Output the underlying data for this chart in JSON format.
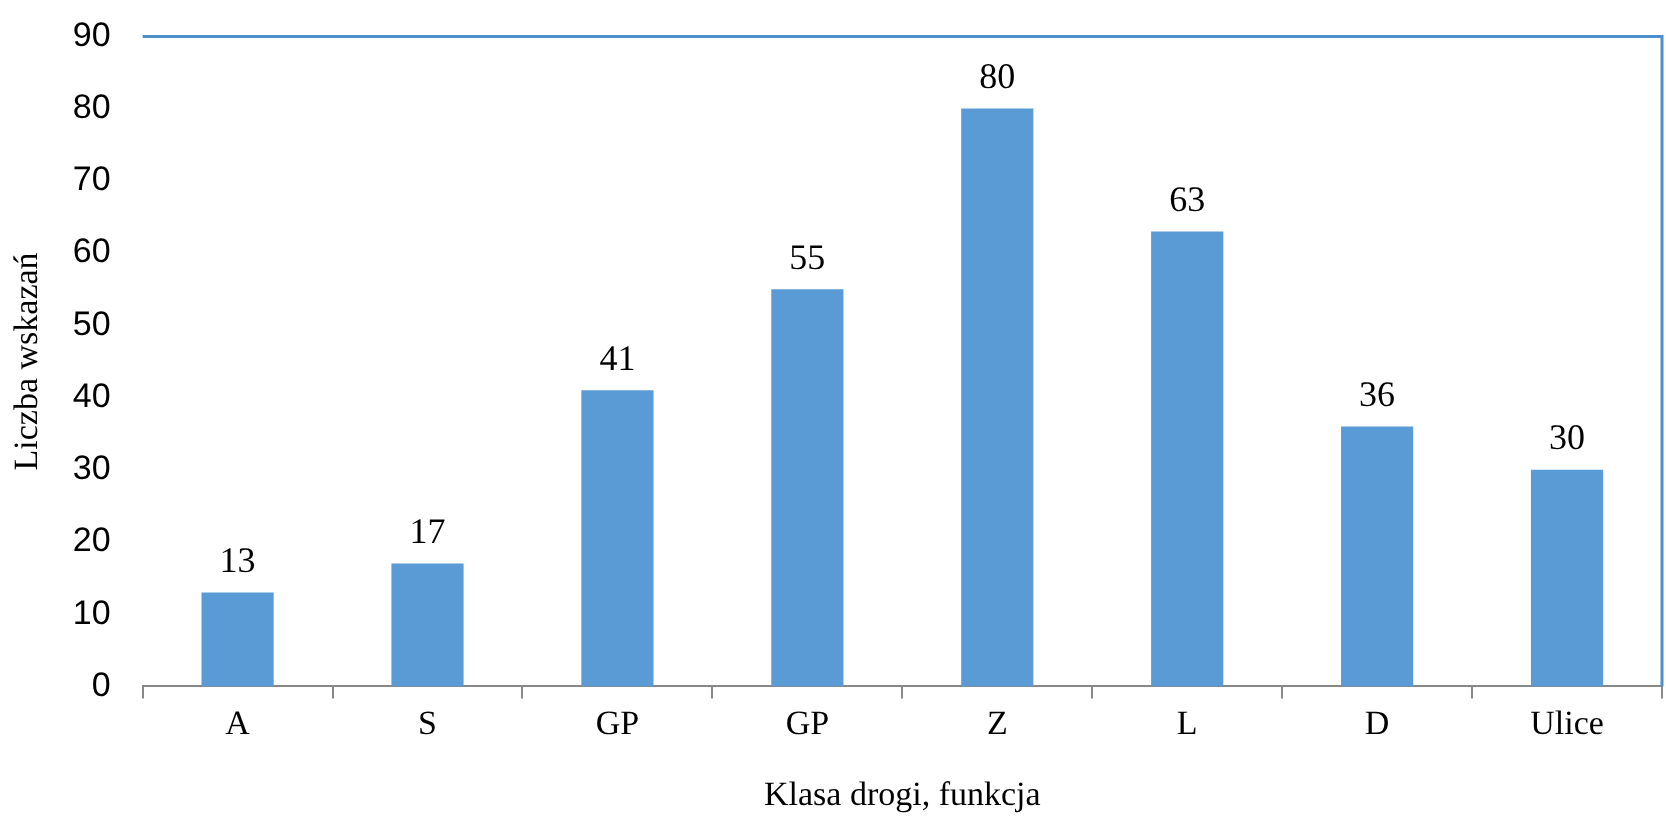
{
  "chart_data": {
    "type": "bar",
    "categories": [
      "A",
      "S",
      "GP",
      "GP",
      "Z",
      "L",
      "D",
      "Ulice"
    ],
    "values": [
      13,
      17,
      41,
      55,
      80,
      63,
      36,
      30
    ],
    "color": "#5b9bd5",
    "xlabel": "Klasa drogi, funkcja",
    "ylabel": "Liczba wskazań",
    "ylim": [
      0,
      90
    ],
    "yticks": [
      0,
      10,
      20,
      30,
      40,
      50,
      60,
      70,
      80,
      90
    ],
    "data_labels": true
  }
}
